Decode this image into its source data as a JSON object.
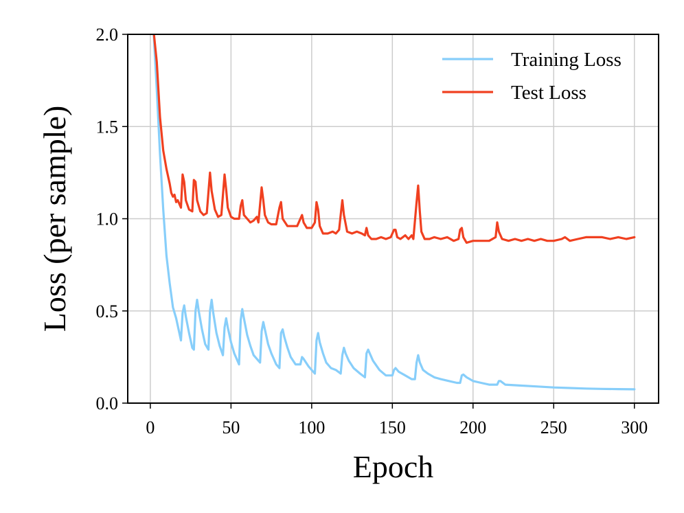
{
  "chart_data": {
    "type": "line",
    "title": "",
    "xlabel": "Epoch",
    "ylabel": "Loss (per sample)",
    "xlim": [
      -14,
      315
    ],
    "ylim": [
      0.0,
      2.0
    ],
    "xticks": [
      0,
      50,
      100,
      150,
      200,
      250,
      300
    ],
    "xtick_labels": [
      "0",
      "50",
      "100",
      "150",
      "200",
      "250",
      "300"
    ],
    "yticks": [
      0.0,
      0.5,
      1.0,
      1.5,
      2.0
    ],
    "ytick_labels": [
      "0.0",
      "0.5",
      "1.0",
      "1.5",
      "2.0"
    ],
    "grid": true,
    "legend_position": "top-right",
    "series": [
      {
        "name": "Training Loss",
        "color": "#87cefa",
        "points": [
          [
            2,
            2.02
          ],
          [
            4,
            1.7
          ],
          [
            6,
            1.35
          ],
          [
            8,
            1.05
          ],
          [
            10,
            0.8
          ],
          [
            12,
            0.65
          ],
          [
            14,
            0.52
          ],
          [
            16,
            0.46
          ],
          [
            18,
            0.38
          ],
          [
            19,
            0.34
          ],
          [
            20,
            0.49
          ],
          [
            21,
            0.53
          ],
          [
            22,
            0.47
          ],
          [
            24,
            0.38
          ],
          [
            26,
            0.3
          ],
          [
            27,
            0.29
          ],
          [
            28,
            0.5
          ],
          [
            29,
            0.56
          ],
          [
            30,
            0.5
          ],
          [
            32,
            0.4
          ],
          [
            34,
            0.32
          ],
          [
            36,
            0.29
          ],
          [
            37,
            0.5
          ],
          [
            38,
            0.56
          ],
          [
            39,
            0.49
          ],
          [
            41,
            0.38
          ],
          [
            43,
            0.31
          ],
          [
            45,
            0.26
          ],
          [
            46,
            0.41
          ],
          [
            47,
            0.46
          ],
          [
            48,
            0.41
          ],
          [
            50,
            0.33
          ],
          [
            52,
            0.27
          ],
          [
            55,
            0.21
          ],
          [
            56,
            0.45
          ],
          [
            57,
            0.51
          ],
          [
            58,
            0.46
          ],
          [
            60,
            0.37
          ],
          [
            62,
            0.31
          ],
          [
            64,
            0.26
          ],
          [
            68,
            0.22
          ],
          [
            69,
            0.39
          ],
          [
            70,
            0.44
          ],
          [
            71,
            0.4
          ],
          [
            73,
            0.32
          ],
          [
            75,
            0.27
          ],
          [
            78,
            0.21
          ],
          [
            80,
            0.19
          ],
          [
            81,
            0.38
          ],
          [
            82,
            0.4
          ],
          [
            83,
            0.36
          ],
          [
            85,
            0.3
          ],
          [
            87,
            0.25
          ],
          [
            90,
            0.21
          ],
          [
            93,
            0.21
          ],
          [
            94,
            0.25
          ],
          [
            95,
            0.24
          ],
          [
            98,
            0.2
          ],
          [
            102,
            0.16
          ],
          [
            103,
            0.34
          ],
          [
            104,
            0.38
          ],
          [
            105,
            0.33
          ],
          [
            107,
            0.27
          ],
          [
            109,
            0.22
          ],
          [
            112,
            0.19
          ],
          [
            115,
            0.18
          ],
          [
            118,
            0.16
          ],
          [
            119,
            0.26
          ],
          [
            120,
            0.3
          ],
          [
            121,
            0.27
          ],
          [
            123,
            0.23
          ],
          [
            126,
            0.19
          ],
          [
            130,
            0.16
          ],
          [
            133,
            0.14
          ],
          [
            134,
            0.27
          ],
          [
            135,
            0.29
          ],
          [
            136,
            0.27
          ],
          [
            138,
            0.23
          ],
          [
            142,
            0.18
          ],
          [
            146,
            0.15
          ],
          [
            150,
            0.15
          ],
          [
            151,
            0.18
          ],
          [
            152,
            0.19
          ],
          [
            154,
            0.17
          ],
          [
            158,
            0.15
          ],
          [
            162,
            0.13
          ],
          [
            164,
            0.13
          ],
          [
            165,
            0.22
          ],
          [
            166,
            0.26
          ],
          [
            167,
            0.22
          ],
          [
            169,
            0.18
          ],
          [
            172,
            0.16
          ],
          [
            176,
            0.14
          ],
          [
            180,
            0.13
          ],
          [
            185,
            0.12
          ],
          [
            190,
            0.11
          ],
          [
            192,
            0.11
          ],
          [
            193,
            0.15
          ],
          [
            194,
            0.155
          ],
          [
            196,
            0.14
          ],
          [
            200,
            0.12
          ],
          [
            205,
            0.11
          ],
          [
            210,
            0.1
          ],
          [
            215,
            0.1
          ],
          [
            216,
            0.12
          ],
          [
            217,
            0.12
          ],
          [
            220,
            0.1
          ],
          [
            230,
            0.095
          ],
          [
            240,
            0.09
          ],
          [
            250,
            0.085
          ],
          [
            260,
            0.082
          ],
          [
            270,
            0.079
          ],
          [
            280,
            0.077
          ],
          [
            290,
            0.076
          ],
          [
            300,
            0.075
          ]
        ]
      },
      {
        "name": "Test Loss",
        "color": "#f04020",
        "points": [
          [
            2,
            2.02
          ],
          [
            4,
            1.85
          ],
          [
            6,
            1.55
          ],
          [
            8,
            1.37
          ],
          [
            10,
            1.27
          ],
          [
            12,
            1.19
          ],
          [
            13,
            1.14
          ],
          [
            14,
            1.12
          ],
          [
            15,
            1.13
          ],
          [
            16,
            1.09
          ],
          [
            17,
            1.1
          ],
          [
            18,
            1.08
          ],
          [
            19,
            1.06
          ],
          [
            20,
            1.24
          ],
          [
            21,
            1.2
          ],
          [
            22,
            1.1
          ],
          [
            24,
            1.05
          ],
          [
            26,
            1.04
          ],
          [
            27,
            1.21
          ],
          [
            28,
            1.2
          ],
          [
            29,
            1.1
          ],
          [
            31,
            1.04
          ],
          [
            33,
            1.02
          ],
          [
            35,
            1.03
          ],
          [
            37,
            1.25
          ],
          [
            38,
            1.15
          ],
          [
            40,
            1.05
          ],
          [
            42,
            1.01
          ],
          [
            44,
            1.02
          ],
          [
            46,
            1.24
          ],
          [
            47,
            1.16
          ],
          [
            48,
            1.06
          ],
          [
            50,
            1.01
          ],
          [
            52,
            1.0
          ],
          [
            55,
            1.0
          ],
          [
            56,
            1.07
          ],
          [
            57,
            1.1
          ],
          [
            58,
            1.02
          ],
          [
            60,
            1.0
          ],
          [
            62,
            0.98
          ],
          [
            64,
            0.99
          ],
          [
            66,
            1.01
          ],
          [
            67,
            0.98
          ],
          [
            69,
            1.17
          ],
          [
            70,
            1.1
          ],
          [
            71,
            1.02
          ],
          [
            73,
            0.98
          ],
          [
            75,
            0.97
          ],
          [
            78,
            0.97
          ],
          [
            80,
            1.06
          ],
          [
            81,
            1.09
          ],
          [
            82,
            1.0
          ],
          [
            85,
            0.96
          ],
          [
            88,
            0.96
          ],
          [
            91,
            0.96
          ],
          [
            94,
            1.02
          ],
          [
            95,
            0.98
          ],
          [
            97,
            0.95
          ],
          [
            100,
            0.95
          ],
          [
            102,
            0.98
          ],
          [
            103,
            1.09
          ],
          [
            104,
            1.05
          ],
          [
            105,
            0.96
          ],
          [
            107,
            0.92
          ],
          [
            110,
            0.92
          ],
          [
            113,
            0.93
          ],
          [
            115,
            0.92
          ],
          [
            117,
            0.94
          ],
          [
            118,
            1.02
          ],
          [
            119,
            1.1
          ],
          [
            120,
            1.02
          ],
          [
            122,
            0.93
          ],
          [
            125,
            0.92
          ],
          [
            128,
            0.93
          ],
          [
            131,
            0.92
          ],
          [
            133,
            0.91
          ],
          [
            134,
            0.95
          ],
          [
            135,
            0.91
          ],
          [
            137,
            0.89
          ],
          [
            140,
            0.89
          ],
          [
            143,
            0.9
          ],
          [
            146,
            0.89
          ],
          [
            149,
            0.9
          ],
          [
            151,
            0.94
          ],
          [
            152,
            0.94
          ],
          [
            153,
            0.9
          ],
          [
            155,
            0.89
          ],
          [
            158,
            0.91
          ],
          [
            160,
            0.89
          ],
          [
            162,
            0.91
          ],
          [
            163,
            0.89
          ],
          [
            165,
            1.09
          ],
          [
            166,
            1.18
          ],
          [
            167,
            1.04
          ],
          [
            168,
            0.93
          ],
          [
            170,
            0.89
          ],
          [
            173,
            0.89
          ],
          [
            176,
            0.9
          ],
          [
            180,
            0.89
          ],
          [
            184,
            0.9
          ],
          [
            188,
            0.88
          ],
          [
            191,
            0.89
          ],
          [
            192,
            0.94
          ],
          [
            193,
            0.95
          ],
          [
            194,
            0.9
          ],
          [
            196,
            0.87
          ],
          [
            200,
            0.88
          ],
          [
            205,
            0.88
          ],
          [
            210,
            0.88
          ],
          [
            214,
            0.9
          ],
          [
            215,
            0.98
          ],
          [
            216,
            0.93
          ],
          [
            218,
            0.89
          ],
          [
            222,
            0.88
          ],
          [
            226,
            0.89
          ],
          [
            230,
            0.88
          ],
          [
            234,
            0.89
          ],
          [
            238,
            0.88
          ],
          [
            242,
            0.89
          ],
          [
            246,
            0.88
          ],
          [
            250,
            0.88
          ],
          [
            255,
            0.89
          ],
          [
            257,
            0.9
          ],
          [
            260,
            0.88
          ],
          [
            265,
            0.89
          ],
          [
            270,
            0.9
          ],
          [
            275,
            0.9
          ],
          [
            280,
            0.9
          ],
          [
            285,
            0.89
          ],
          [
            290,
            0.9
          ],
          [
            295,
            0.89
          ],
          [
            300,
            0.9
          ]
        ]
      }
    ]
  }
}
